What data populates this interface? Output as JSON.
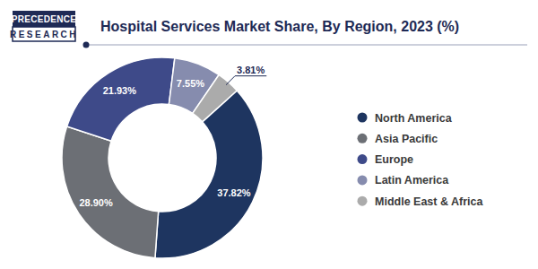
{
  "chart_data": {
    "type": "pie",
    "title": "Hospital Services Market Share, By Region, 2023 (%)",
    "annotations": [
      "PRECEDENCE",
      "RESEARCH"
    ],
    "categories": [
      "North America",
      "Asia Pacific",
      "Europe",
      "Latin America",
      "Middle East & Africa"
    ],
    "values": [
      37.82,
      28.9,
      21.93,
      7.55,
      3.81
    ],
    "value_labels": [
      "37.82%",
      "28.90%",
      "21.93%",
      "7.55%",
      "3.81%"
    ],
    "colors": [
      "#1e3560",
      "#6c6f75",
      "#3e4a89",
      "#868cae",
      "#ababab"
    ],
    "data_labels": true,
    "legend": "right"
  }
}
